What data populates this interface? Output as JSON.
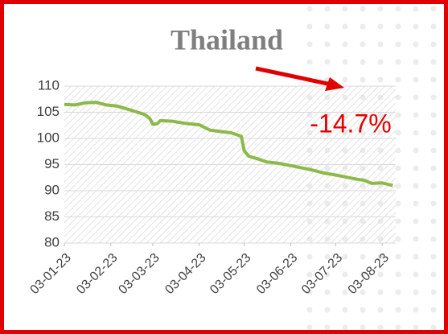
{
  "chart_data": {
    "type": "line",
    "title": "Thailand",
    "annotation": "-14.7%",
    "x": [
      "03-01-23",
      "10-01-23",
      "17-01-23",
      "24-01-23",
      "31-01-23",
      "07-02-23",
      "14-02-23",
      "21-02-23",
      "26-02-23",
      "01-03-23",
      "03-03-23",
      "06-03-23",
      "08-03-23",
      "16-03-23",
      "24-03-23",
      "03-04-23",
      "10-04-23",
      "18-04-23",
      "24-04-23",
      "28-04-23",
      "01-05-23",
      "03-05-23",
      "06-05-23",
      "12-05-23",
      "18-05-23",
      "25-05-23",
      "03-06-23",
      "10-06-23",
      "18-06-23",
      "25-06-23",
      "03-07-23",
      "10-07-23",
      "17-07-23",
      "22-07-23",
      "27-07-23",
      "03-08-23",
      "10-08-23"
    ],
    "series": [
      {
        "name": "Thailand",
        "color": "#8db84a",
        "values": [
          106.5,
          106.4,
          106.8,
          106.9,
          106.4,
          106.2,
          105.6,
          105.0,
          104.5,
          103.8,
          102.7,
          102.8,
          103.4,
          103.3,
          102.9,
          102.6,
          101.6,
          101.3,
          101.1,
          100.7,
          100.4,
          97.6,
          96.6,
          96.1,
          95.5,
          95.3,
          94.8,
          94.4,
          93.9,
          93.4,
          93.0,
          92.6,
          92.2,
          92.0,
          91.4,
          91.5,
          91.0
        ]
      }
    ],
    "xlim": [
      "03-01-23",
      "12-08-23"
    ],
    "xticks": [
      "03-01-23",
      "03-02-23",
      "03-03-23",
      "03-04-23",
      "03-05-23",
      "03-06-23",
      "03-07-23",
      "03-08-23"
    ],
    "ylim": [
      80,
      110
    ],
    "yticks": [
      80,
      85,
      90,
      95,
      100,
      105,
      110
    ],
    "grid": true
  }
}
